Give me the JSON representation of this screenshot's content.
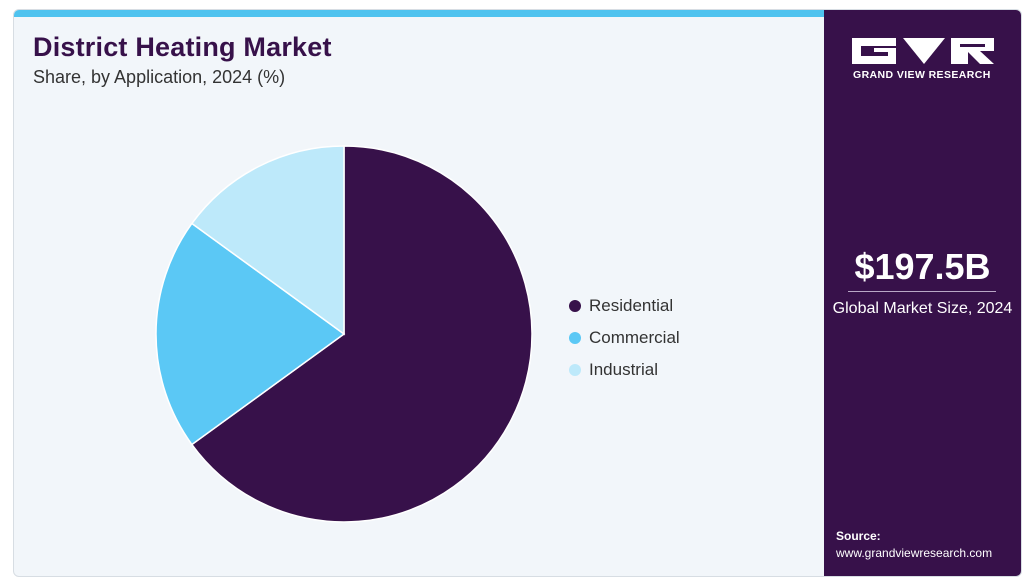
{
  "header": {
    "title": "District Heating Market",
    "subtitle": "Share, by Application, 2024 (%)"
  },
  "colors": {
    "accent_bar": "#4fc3ef",
    "panel": "#37114a",
    "background": "#f2f6fa"
  },
  "chart_data": {
    "type": "pie",
    "categories": [
      "Residential",
      "Commercial",
      "Industrial"
    ],
    "values": [
      65,
      20,
      15
    ],
    "colors": [
      "#37114a",
      "#5bc8f5",
      "#bde9fa"
    ],
    "start_angle_deg": 0,
    "direction": "clockwise",
    "legend_position": "right"
  },
  "sidebar": {
    "brand": "GRAND VIEW RESEARCH",
    "stat_value": "$197.5B",
    "stat_label": "Global Market Size, 2024",
    "source_label": "Source:",
    "source_url": "www.grandviewresearch.com"
  }
}
